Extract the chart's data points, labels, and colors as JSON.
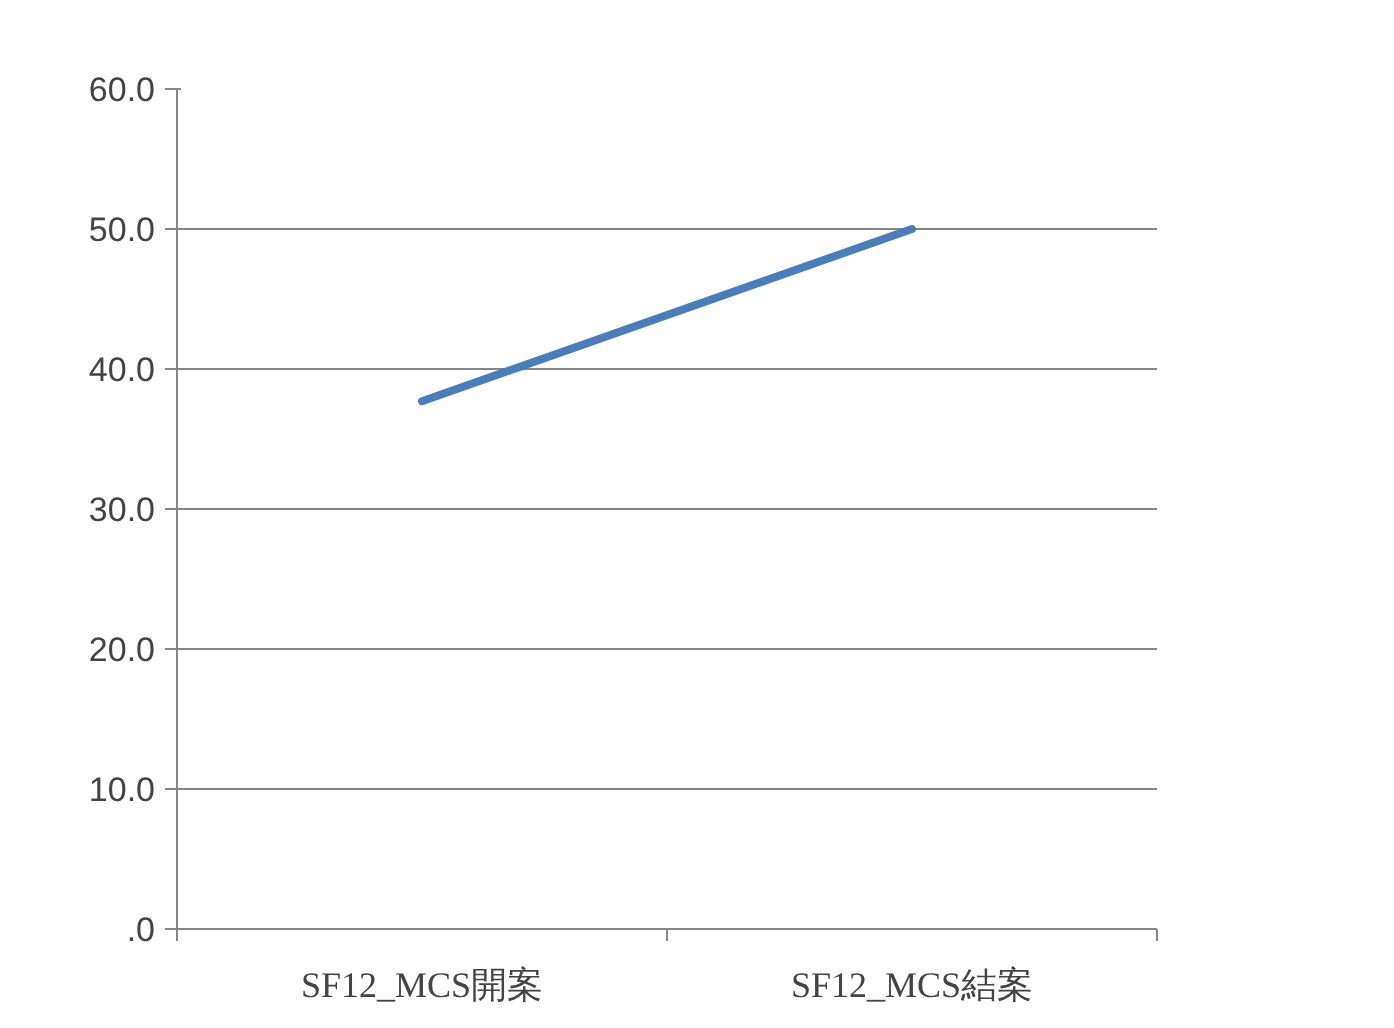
{
  "chart_data": {
    "type": "line",
    "categories": [
      "SF12_MCS開案",
      "SF12_MCS結案"
    ],
    "series": [
      {
        "color": "#4a7ebb",
        "values": [
          37.7,
          50.0
        ]
      }
    ],
    "ylim": [
      0,
      60
    ],
    "yticks": [
      {
        "value": 0,
        "label": ".0"
      },
      {
        "value": 10,
        "label": "10.0"
      },
      {
        "value": 20,
        "label": "20.0"
      },
      {
        "value": 30,
        "label": "30.0"
      },
      {
        "value": 40,
        "label": "40.0"
      },
      {
        "value": 50,
        "label": "50.0"
      },
      {
        "value": 60,
        "label": "60.0"
      }
    ],
    "grid": "y",
    "marker": "none",
    "line_style": "solid"
  }
}
